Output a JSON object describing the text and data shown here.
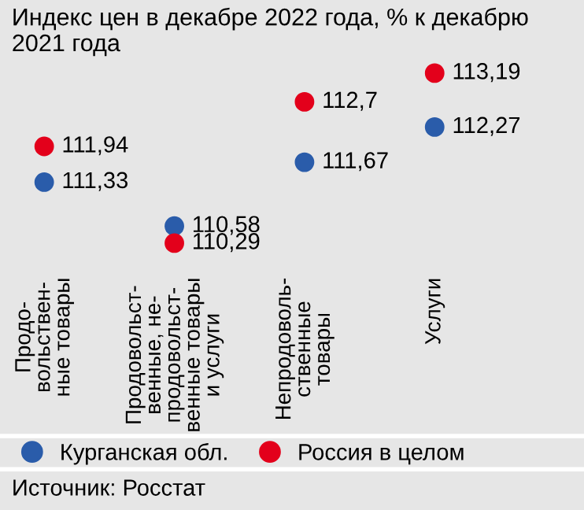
{
  "chart_data": {
    "type": "scatter",
    "title": "Индекс цен в декабре 2022 года, % к декабрю 2021 года",
    "categories": [
      "Продо-\nвольствен-\nные товары",
      "Продовольст-\nвенные, не-\nпродовольст-\nвенные товары\nи услуги",
      "Непродоволь-\nственные\nтовары",
      "Услуги"
    ],
    "series": [
      {
        "name": "Курганская обл.",
        "color": "#2a5caa",
        "values": [
          111.33,
          110.58,
          111.67,
          112.27
        ],
        "value_labels": [
          "111,33",
          "110,58",
          "111,67",
          "112,27"
        ]
      },
      {
        "name": "Россия в целом",
        "color": "#e3001b",
        "values": [
          111.94,
          110.29,
          112.7,
          113.19
        ],
        "value_labels": [
          "111,94",
          "110,29",
          "112,7",
          "113,19"
        ]
      }
    ],
    "marker": "circle",
    "legend": "bottom",
    "grid": false,
    "annotations": [
      "Источник: Росстат"
    ]
  }
}
